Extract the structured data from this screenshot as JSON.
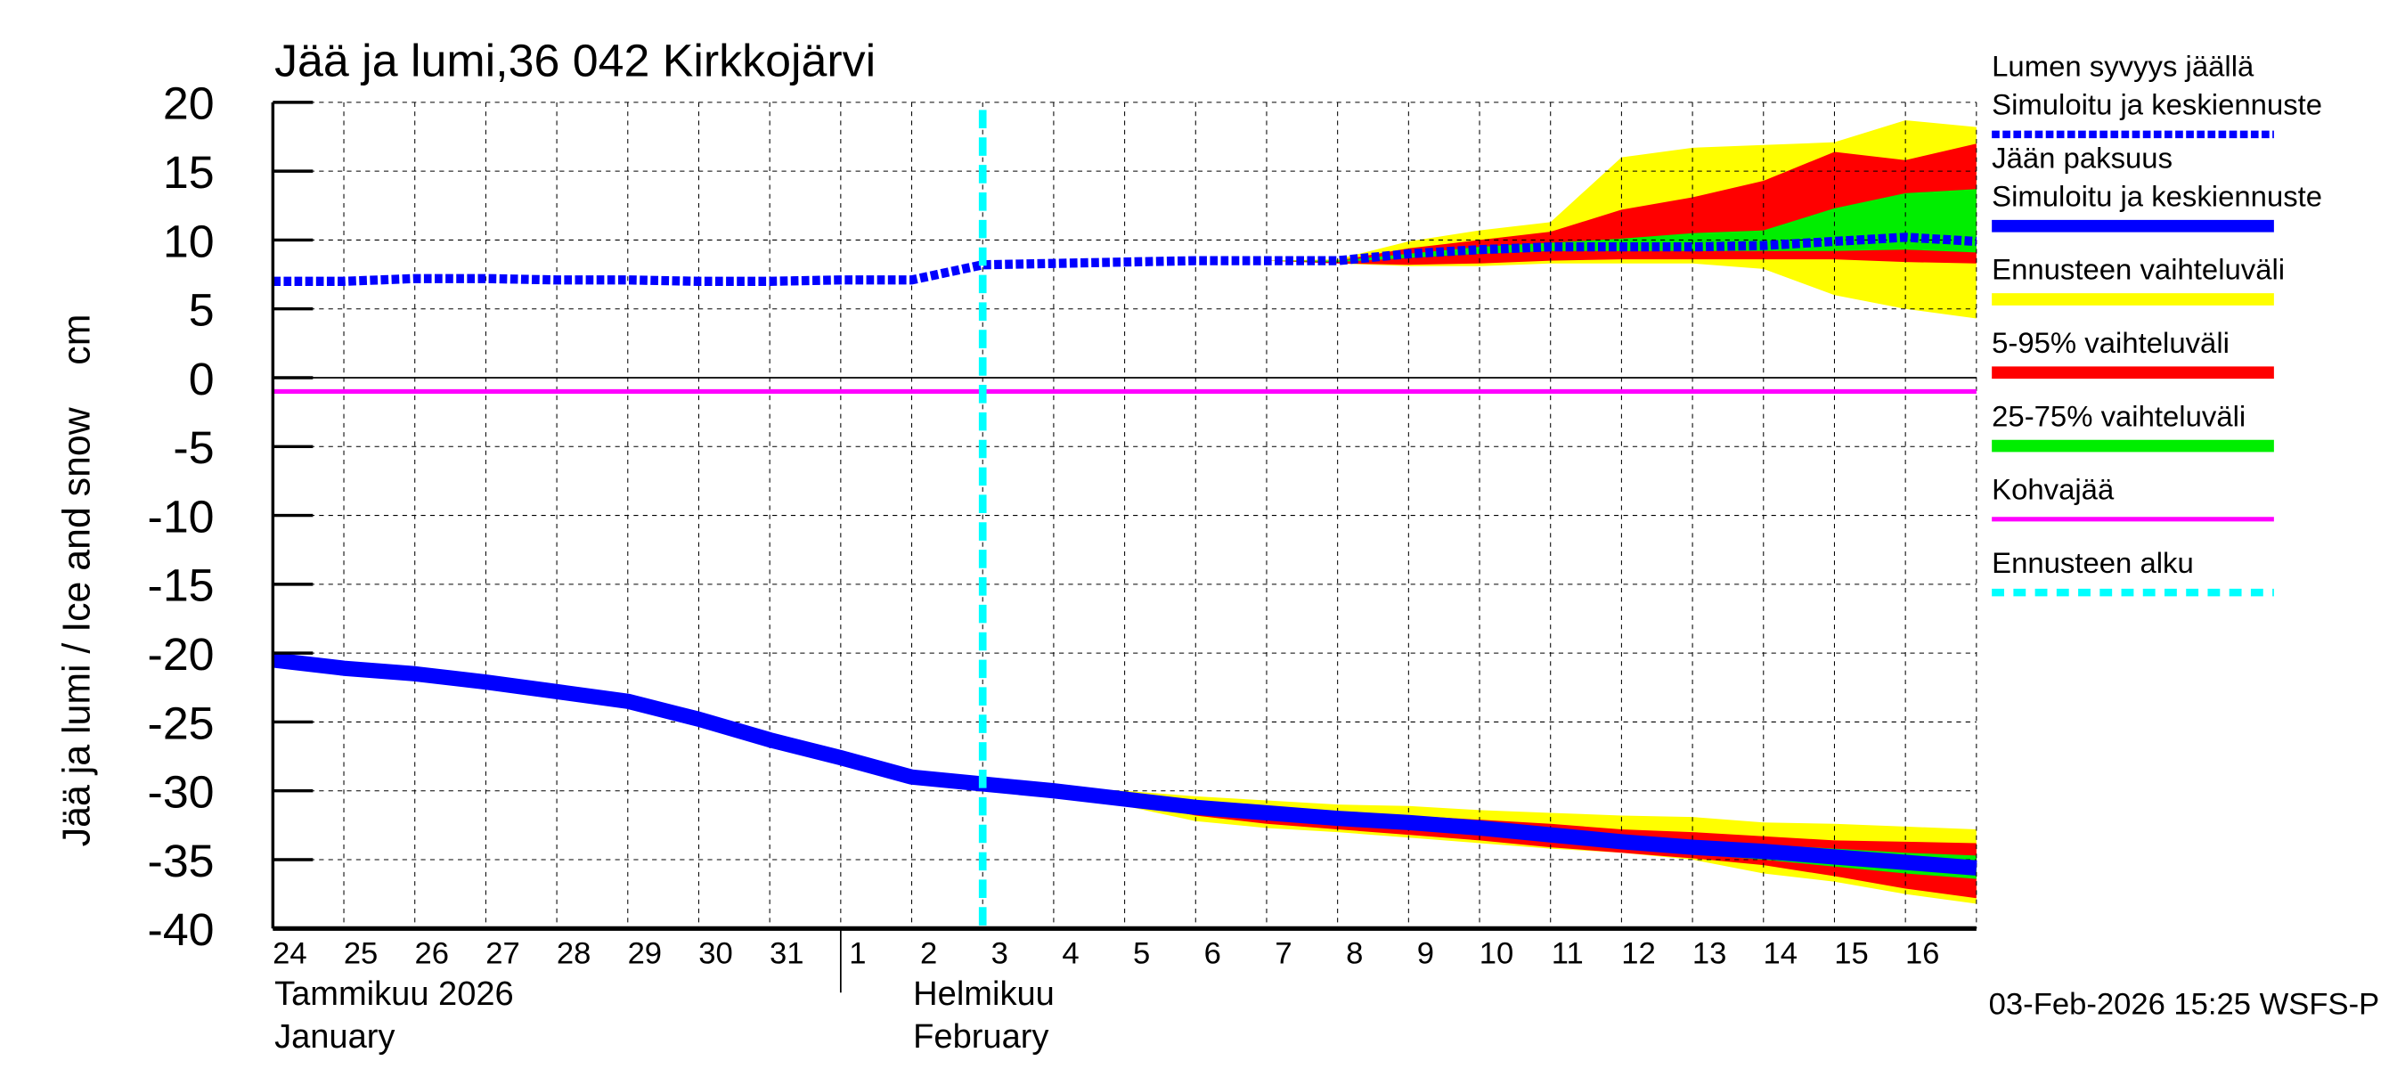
{
  "chart_data": {
    "type": "line",
    "title": "Jää ja lumi,36 042 Kirkkojärvi",
    "ylabel": "Jää ja lumi / Ice and snow    cm",
    "ylim": [
      -40,
      20
    ],
    "yticks": [
      20,
      15,
      10,
      5,
      0,
      -5,
      -10,
      -15,
      -20,
      -25,
      -30,
      -35,
      -40
    ],
    "xlim": [
      "2026-01-24",
      "2026-02-17"
    ],
    "grid": true,
    "legend_placement": "right",
    "x_tick_labels": [
      "24",
      "25",
      "26",
      "27",
      "28",
      "29",
      "30",
      "31",
      "1",
      "2",
      "3",
      "4",
      "5",
      "6",
      "7",
      "8",
      "9",
      "10",
      "11",
      "12",
      "13",
      "14",
      "15",
      "16"
    ],
    "month_labels": [
      {
        "fi": "Tammikuu  2026",
        "en": "January",
        "start": "2026-01-24"
      },
      {
        "fi": "Helmikuu",
        "en": "February",
        "start": "2026-02-01"
      }
    ],
    "forecast_start": "2026-02-03",
    "kohvajaa_level": -1,
    "dates": [
      "2026-01-24",
      "2026-01-25",
      "2026-01-26",
      "2026-01-27",
      "2026-01-28",
      "2026-01-29",
      "2026-01-30",
      "2026-01-31",
      "2026-02-01",
      "2026-02-02",
      "2026-02-03",
      "2026-02-04",
      "2026-02-05",
      "2026-02-06",
      "2026-02-07",
      "2026-02-08",
      "2026-02-09",
      "2026-02-10",
      "2026-02-11",
      "2026-02-12",
      "2026-02-13",
      "2026-02-14",
      "2026-02-15",
      "2026-02-16",
      "2026-02-17"
    ],
    "series": [
      {
        "name": "Lumen syvyys jäällä - Simuloitu ja keskiennuste",
        "color": "#0000ff",
        "style": "dotted",
        "values": [
          7.0,
          7.0,
          7.2,
          7.2,
          7.1,
          7.1,
          7.0,
          7.0,
          7.1,
          7.1,
          8.2,
          8.3,
          8.4,
          8.5,
          8.5,
          8.5,
          9.0,
          9.3,
          9.5,
          9.5,
          9.5,
          9.6,
          9.9,
          10.2,
          9.9
        ]
      },
      {
        "name": "Jään paksuus - Simuloitu ja keskiennuste",
        "color": "#0000ff",
        "style": "solid",
        "values": [
          -20.5,
          -21.1,
          -21.5,
          -22.1,
          -22.8,
          -23.5,
          -24.8,
          -26.3,
          -27.6,
          -29.0,
          -29.5,
          -30.0,
          -30.6,
          -31.2,
          -31.6,
          -32.0,
          -32.3,
          -32.7,
          -33.2,
          -33.7,
          -34.1,
          -34.4,
          -34.8,
          -35.2,
          -35.6
        ]
      }
    ],
    "bands": {
      "snow": {
        "start": "2026-02-07",
        "yellow": {
          "upper": [
            8.5,
            8.6,
            9.9,
            10.7,
            11.3,
            16.0,
            16.7,
            16.9,
            17.1,
            18.7,
            18.2
          ],
          "lower": [
            8.5,
            8.3,
            8.1,
            8.1,
            8.3,
            8.3,
            8.3,
            7.9,
            6.0,
            5.0,
            4.3
          ]
        },
        "red": {
          "upper": [
            8.5,
            8.5,
            9.4,
            10.0,
            10.6,
            12.2,
            13.1,
            14.3,
            16.4,
            15.8,
            17.0
          ],
          "lower": [
            8.5,
            8.3,
            8.2,
            8.3,
            8.5,
            8.6,
            8.6,
            8.6,
            8.6,
            8.4,
            8.3
          ]
        },
        "green": {
          "upper": [
            8.5,
            8.5,
            9.0,
            9.5,
            9.8,
            10.1,
            10.5,
            10.7,
            12.3,
            13.4,
            13.7
          ],
          "lower": [
            8.5,
            8.4,
            8.7,
            9.0,
            9.2,
            9.2,
            9.2,
            9.2,
            9.2,
            9.3,
            9.1
          ]
        }
      },
      "ice": {
        "start": "2026-02-03",
        "yellow": {
          "upper": [
            -29.5,
            -29.7,
            -30.0,
            -30.4,
            -30.7,
            -31.0,
            -31.1,
            -31.4,
            -31.6,
            -31.8,
            -31.9,
            -32.3,
            -32.4,
            -32.6,
            -32.8
          ],
          "lower": [
            -29.5,
            -30.2,
            -31.1,
            -32.2,
            -32.7,
            -33.0,
            -33.4,
            -33.8,
            -34.2,
            -34.5,
            -35.0,
            -36.0,
            -36.6,
            -37.5,
            -38.2
          ]
        },
        "red": {
          "upper": [
            -29.5,
            -30.0,
            -30.4,
            -30.9,
            -31.3,
            -31.6,
            -31.8,
            -32.1,
            -32.4,
            -32.8,
            -33.0,
            -33.3,
            -33.6,
            -33.7,
            -33.8
          ],
          "lower": [
            -29.5,
            -30.0,
            -30.8,
            -31.8,
            -32.4,
            -32.8,
            -33.2,
            -33.6,
            -34.1,
            -34.5,
            -34.9,
            -35.4,
            -36.2,
            -37.1,
            -37.8
          ]
        },
        "green": {
          "upper": [
            -29.5,
            -30.0,
            -30.5,
            -31.0,
            -31.4,
            -31.8,
            -32.0,
            -32.4,
            -32.9,
            -33.3,
            -33.6,
            -33.9,
            -34.2,
            -34.5,
            -34.7
          ],
          "lower": [
            -29.5,
            -30.0,
            -30.7,
            -31.4,
            -31.9,
            -32.3,
            -32.7,
            -33.1,
            -33.6,
            -34.1,
            -34.6,
            -35.0,
            -35.5,
            -36.0,
            -36.4
          ]
        }
      }
    },
    "legend": [
      {
        "label": "Lumen syvyys jäällä",
        "label2": "Simuloitu ja keskiennuste",
        "color": "#0000ff",
        "style": "dotted"
      },
      {
        "label": "Jään paksuus",
        "label2": "Simuloitu ja keskiennuste",
        "color": "#0000ff",
        "style": "solid"
      },
      {
        "label": "Ennusteen vaihteluväli",
        "color": "#ffff00",
        "style": "solid"
      },
      {
        "label": "5-95% vaihteluväli",
        "color": "#ff0000",
        "style": "solid"
      },
      {
        "label": "25-75% vaihteluväli",
        "color": "#00ee00",
        "style": "solid"
      },
      {
        "label": "Kohvajää",
        "color": "#ff00ff",
        "style": "thin"
      },
      {
        "label": "Ennusteen alku",
        "color": "#00ffff",
        "style": "dashed"
      }
    ]
  },
  "footer": {
    "timestamp": "03-Feb-2026 15:25 WSFS-P"
  }
}
